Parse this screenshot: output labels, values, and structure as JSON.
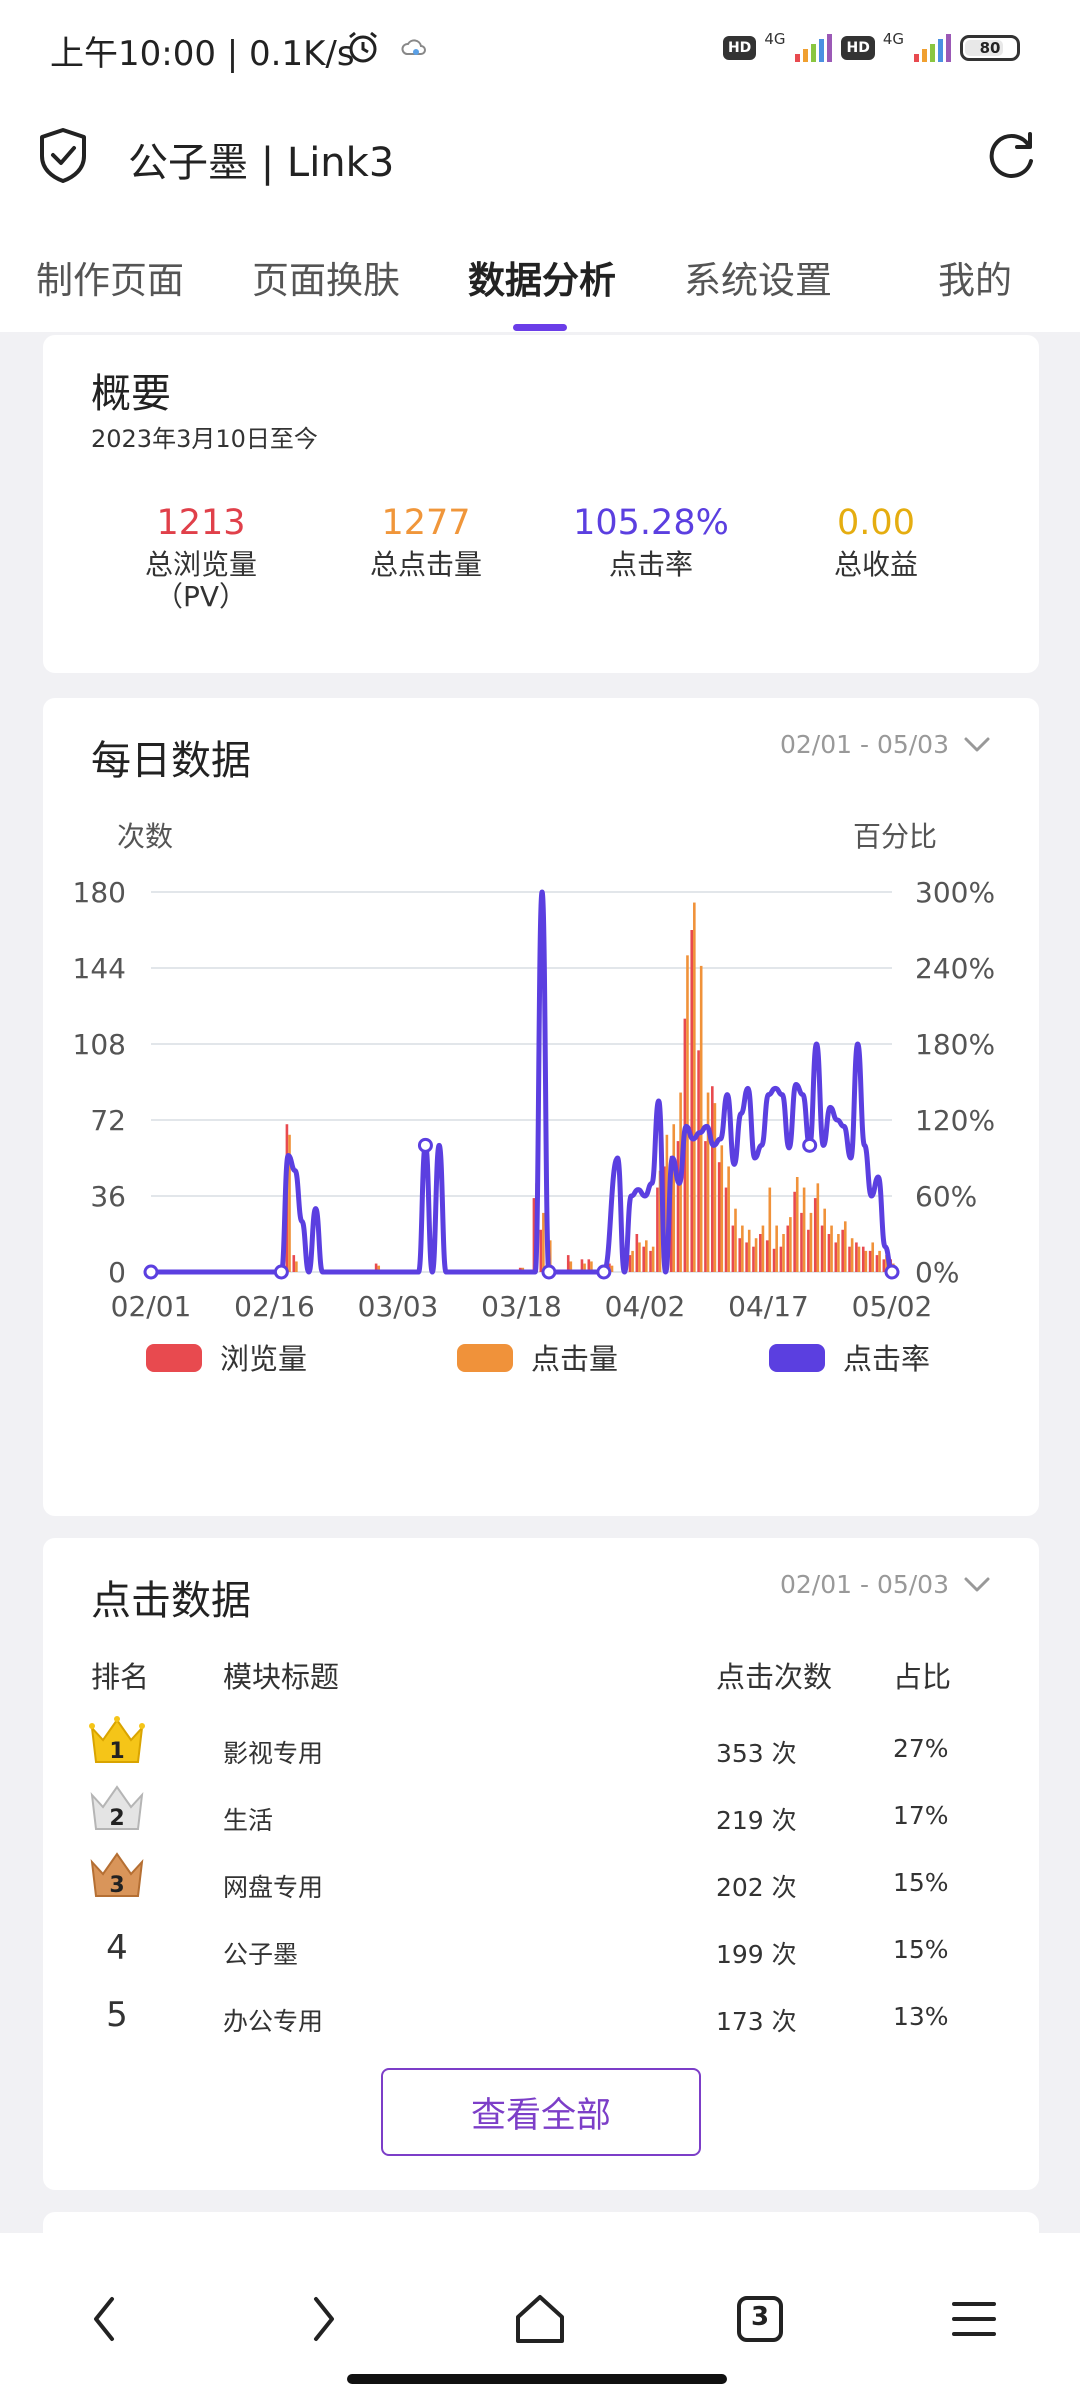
{
  "status_bar": {
    "time": "上午10:00 | 0.1K/s",
    "hd_badge": "HD",
    "network": "4G",
    "battery": "80"
  },
  "app_bar": {
    "title": "公子墨 | Link3"
  },
  "tabs": [
    {
      "label": "制作页面"
    },
    {
      "label": "页面换肤"
    },
    {
      "label": "数据分析"
    },
    {
      "label": "系统设置"
    },
    {
      "label": "我的"
    }
  ],
  "active_tab": "数据分析",
  "overview": {
    "title": "概要",
    "since": "2023年3月10日至今",
    "stats": [
      {
        "value": "1213",
        "label": "总浏览量\n（PV）",
        "color": "#e0404a"
      },
      {
        "value": "1277",
        "label": "总点击量",
        "color": "#f0963a"
      },
      {
        "value": "105.28%",
        "label": "点击率",
        "color": "#5b3fe0"
      },
      {
        "value": "0.00",
        "label": "总收益",
        "color": "#e5ad10"
      }
    ]
  },
  "daily": {
    "title": "每日数据",
    "range": "02/01 - 05/03"
  },
  "chart_data": {
    "type": "bar",
    "ylabel_left": "次数",
    "ylabel_right": "百分比",
    "left_ticks": [
      "0",
      "36",
      "72",
      "108",
      "144",
      "180"
    ],
    "right_ticks": [
      "0%",
      "60%",
      "120%",
      "180%",
      "240%",
      "300%"
    ],
    "ylim_left": [
      0,
      180
    ],
    "ylim_right": [
      0,
      300
    ],
    "x_ticks": [
      "02/01",
      "02/16",
      "03/03",
      "03/18",
      "04/02",
      "04/17",
      "05/02"
    ],
    "legend": [
      {
        "name": "浏览量",
        "color": "#e84a4f"
      },
      {
        "name": "点击量",
        "color": "#f0923a"
      },
      {
        "name": "点击率",
        "color": "#5b3fe0"
      }
    ],
    "series": [
      {
        "name": "浏览量",
        "type": "bar",
        "points": [
          [
            20,
            70
          ],
          [
            21,
            8
          ],
          [
            33,
            4
          ],
          [
            54,
            2
          ],
          [
            56,
            35
          ],
          [
            57,
            20
          ],
          [
            58,
            12
          ],
          [
            61,
            8
          ],
          [
            63,
            6
          ],
          [
            64,
            6
          ],
          [
            67,
            4
          ],
          [
            69,
            5
          ],
          [
            70,
            8
          ],
          [
            71,
            18
          ],
          [
            72,
            12
          ],
          [
            73,
            10
          ],
          [
            74,
            40
          ],
          [
            75,
            50
          ],
          [
            76,
            55
          ],
          [
            77,
            62
          ],
          [
            78,
            120
          ],
          [
            79,
            162
          ],
          [
            80,
            105
          ],
          [
            81,
            62
          ],
          [
            82,
            88
          ],
          [
            83,
            52
          ],
          [
            84,
            40
          ],
          [
            85,
            22
          ],
          [
            86,
            16
          ],
          [
            87,
            14
          ],
          [
            88,
            12
          ],
          [
            89,
            18
          ],
          [
            90,
            15
          ],
          [
            91,
            11
          ],
          [
            92,
            12
          ],
          [
            93,
            22
          ],
          [
            94,
            38
          ],
          [
            95,
            28
          ],
          [
            96,
            20
          ],
          [
            97,
            35
          ],
          [
            98,
            22
          ],
          [
            99,
            18
          ],
          [
            100,
            14
          ],
          [
            101,
            20
          ],
          [
            102,
            12
          ],
          [
            103,
            14
          ],
          [
            104,
            12
          ],
          [
            105,
            10
          ],
          [
            106,
            8
          ],
          [
            107,
            6
          ],
          [
            108,
            6
          ]
        ]
      },
      {
        "name": "点击量",
        "type": "bar",
        "points": [
          [
            20,
            65
          ],
          [
            21,
            5
          ],
          [
            33,
            3
          ],
          [
            54,
            2
          ],
          [
            56,
            42
          ],
          [
            57,
            28
          ],
          [
            58,
            15
          ],
          [
            61,
            5
          ],
          [
            63,
            4
          ],
          [
            64,
            5
          ],
          [
            67,
            3
          ],
          [
            69,
            4
          ],
          [
            70,
            10
          ],
          [
            71,
            14
          ],
          [
            72,
            15
          ],
          [
            73,
            12
          ],
          [
            74,
            48
          ],
          [
            75,
            65
          ],
          [
            76,
            70
          ],
          [
            77,
            85
          ],
          [
            78,
            150
          ],
          [
            79,
            175
          ],
          [
            80,
            145
          ],
          [
            81,
            85
          ],
          [
            82,
            80
          ],
          [
            83,
            60
          ],
          [
            84,
            50
          ],
          [
            85,
            30
          ],
          [
            86,
            22
          ],
          [
            87,
            20
          ],
          [
            88,
            16
          ],
          [
            89,
            22
          ],
          [
            90,
            40
          ],
          [
            91,
            22
          ],
          [
            92,
            18
          ],
          [
            93,
            26
          ],
          [
            94,
            45
          ],
          [
            95,
            40
          ],
          [
            96,
            28
          ],
          [
            97,
            42
          ],
          [
            98,
            30
          ],
          [
            99,
            22
          ],
          [
            100,
            18
          ],
          [
            101,
            24
          ],
          [
            102,
            16
          ],
          [
            103,
            12
          ],
          [
            104,
            10
          ],
          [
            105,
            14
          ],
          [
            106,
            10
          ],
          [
            107,
            8
          ],
          [
            108,
            4
          ]
        ]
      },
      {
        "name": "点击率",
        "type": "line",
        "points": [
          [
            0,
            0
          ],
          [
            19,
            0
          ],
          [
            20,
            92
          ],
          [
            21,
            80
          ],
          [
            22,
            40
          ],
          [
            23,
            0
          ],
          [
            24,
            50
          ],
          [
            25,
            0
          ],
          [
            39,
            0
          ],
          [
            40,
            100
          ],
          [
            41,
            0
          ],
          [
            42,
            100
          ],
          [
            43,
            0
          ],
          [
            56,
            0
          ],
          [
            57,
            300
          ],
          [
            58,
            0
          ],
          [
            66,
            0
          ],
          [
            68,
            90
          ],
          [
            69,
            0
          ],
          [
            70,
            60
          ],
          [
            71,
            65
          ],
          [
            72,
            60
          ],
          [
            73,
            70
          ],
          [
            74,
            135
          ],
          [
            75,
            0
          ],
          [
            76,
            90
          ],
          [
            77,
            70
          ],
          [
            78,
            115
          ],
          [
            79,
            105
          ],
          [
            80,
            110
          ],
          [
            81,
            115
          ],
          [
            82,
            100
          ],
          [
            83,
            105
          ],
          [
            84,
            140
          ],
          [
            85,
            85
          ],
          [
            86,
            125
          ],
          [
            87,
            145
          ],
          [
            88,
            90
          ],
          [
            89,
            100
          ],
          [
            90,
            140
          ],
          [
            91,
            145
          ],
          [
            92,
            140
          ],
          [
            93,
            98
          ],
          [
            94,
            148
          ],
          [
            95,
            140
          ],
          [
            96,
            100
          ],
          [
            97,
            180
          ],
          [
            98,
            100
          ],
          [
            99,
            130
          ],
          [
            100,
            120
          ],
          [
            101,
            115
          ],
          [
            102,
            90
          ],
          [
            103,
            180
          ],
          [
            104,
            100
          ],
          [
            105,
            60
          ],
          [
            106,
            75
          ],
          [
            107,
            20
          ],
          [
            108,
            0
          ]
        ]
      }
    ]
  },
  "clicks": {
    "title": "点击数据",
    "range": "02/01 - 05/03",
    "headers": {
      "rank": "排名",
      "module": "模块标题",
      "count": "点击次数",
      "ratio": "占比"
    },
    "rows": [
      {
        "rank": "1",
        "name": "影视专用",
        "count": "353 次",
        "ratio": "27%"
      },
      {
        "rank": "2",
        "name": "生活",
        "count": "219 次",
        "ratio": "17%"
      },
      {
        "rank": "3",
        "name": "网盘专用",
        "count": "202 次",
        "ratio": "15%"
      },
      {
        "rank": "4",
        "name": "公子墨",
        "count": "199 次",
        "ratio": "15%"
      },
      {
        "rank": "5",
        "name": "办公专用",
        "count": "173 次",
        "ratio": "13%"
      }
    ],
    "view_all": "查看全部"
  },
  "bottom_nav": {
    "tabs_count": "3"
  },
  "icons": [
    "alarm-icon",
    "cloud-icon",
    "shield-check-icon",
    "refresh-icon",
    "chevron-down-icon",
    "crown-gold-icon",
    "crown-silver-icon",
    "crown-bronze-icon",
    "back-icon",
    "forward-icon",
    "home-icon",
    "tabs-icon",
    "menu-icon"
  ]
}
